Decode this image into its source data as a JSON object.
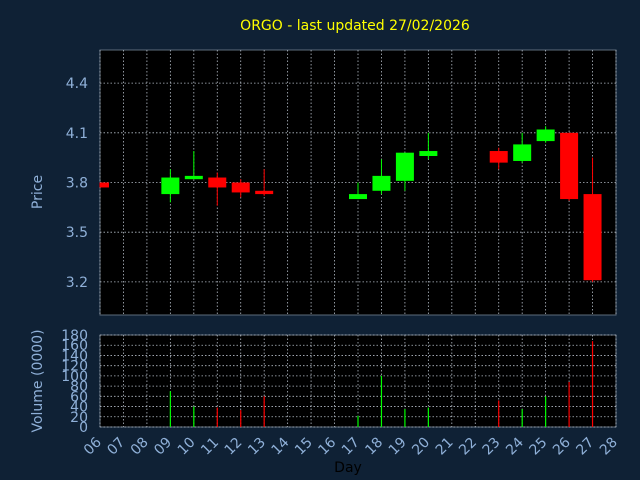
{
  "chart_data": {
    "type": "candlestick",
    "title": "ORGO - last updated 27/02/2026",
    "xlabel": "Day",
    "price_panel": {
      "ylabel": "Price",
      "ylim": [
        3.0,
        4.6
      ],
      "yticks": [
        3.2,
        3.5,
        3.8,
        4.1,
        4.4
      ],
      "grid": true
    },
    "volume_panel": {
      "ylabel": "Volume (0000)",
      "ylim": [
        0,
        180
      ],
      "yticks": [
        0,
        20,
        40,
        60,
        80,
        100,
        120,
        140,
        160,
        180
      ],
      "grid": true
    },
    "x_ticks": [
      "06",
      "07",
      "08",
      "09",
      "10",
      "11",
      "12",
      "13",
      "14",
      "15",
      "16",
      "17",
      "18",
      "19",
      "20",
      "21",
      "22",
      "23",
      "24",
      "25",
      "26",
      "27",
      "28"
    ],
    "candles": [
      {
        "day": "06",
        "open": 3.8,
        "close": 3.77,
        "high": 3.8,
        "low": 3.77,
        "volume": 0
      },
      {
        "day": "09",
        "open": 3.73,
        "close": 3.83,
        "high": 3.88,
        "low": 3.68,
        "volume": 70
      },
      {
        "day": "10",
        "open": 3.82,
        "close": 3.84,
        "high": 3.99,
        "low": 3.82,
        "volume": 40
      },
      {
        "day": "11",
        "open": 3.83,
        "close": 3.77,
        "high": 3.86,
        "low": 3.66,
        "volume": 38
      },
      {
        "day": "12",
        "open": 3.8,
        "close": 3.74,
        "high": 3.82,
        "low": 3.71,
        "volume": 33
      },
      {
        "day": "13",
        "open": 3.75,
        "close": 3.73,
        "high": 3.88,
        "low": 3.72,
        "volume": 60
      },
      {
        "day": "17",
        "open": 3.7,
        "close": 3.73,
        "high": 3.8,
        "low": 3.7,
        "volume": 22
      },
      {
        "day": "18",
        "open": 3.75,
        "close": 3.84,
        "high": 3.94,
        "low": 3.73,
        "volume": 100
      },
      {
        "day": "19",
        "open": 3.81,
        "close": 3.98,
        "high": 3.98,
        "low": 3.75,
        "volume": 35
      },
      {
        "day": "20",
        "open": 3.96,
        "close": 3.99,
        "high": 4.1,
        "low": 3.94,
        "volume": 38
      },
      {
        "day": "23",
        "open": 3.99,
        "close": 3.92,
        "high": 4.01,
        "low": 3.88,
        "volume": 52
      },
      {
        "day": "24",
        "open": 3.93,
        "close": 4.03,
        "high": 4.1,
        "low": 3.92,
        "volume": 35
      },
      {
        "day": "25",
        "open": 4.05,
        "close": 4.12,
        "high": 4.14,
        "low": 4.04,
        "volume": 60
      },
      {
        "day": "26",
        "open": 4.1,
        "close": 3.7,
        "high": 4.1,
        "low": 3.69,
        "volume": 88
      },
      {
        "day": "27",
        "open": 3.73,
        "close": 3.21,
        "high": 3.95,
        "low": 3.2,
        "volume": 168
      }
    ],
    "colors": {
      "background": "#0f2135",
      "panel": "#000000",
      "grid": "#b4bcc6",
      "title": "#ffff00",
      "axis_text": "#8fb0d8",
      "up": "#00ff00",
      "down": "#ff0000"
    }
  }
}
